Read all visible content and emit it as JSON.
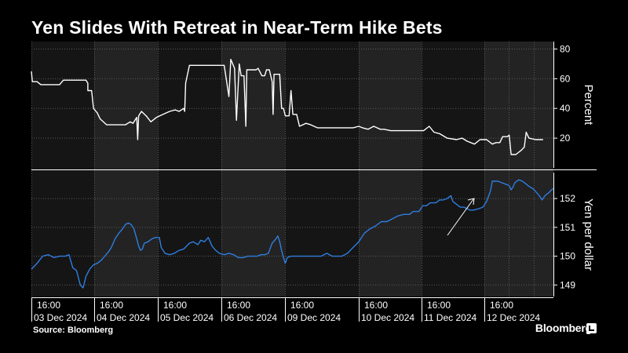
{
  "title": "Yen Slides With Retreat in Near-Term Hike Bets",
  "source": "Source: Bloomberg",
  "brand": "Bloomberg",
  "colors": {
    "background": "#000000",
    "panel_light": "#151515",
    "panel_dark": "#232323",
    "prob_line": "#ffffff",
    "yen_line": "#2f7de1",
    "grid": "#5a5a5a"
  },
  "chart_data": [
    {
      "type": "line",
      "panel": "top",
      "ylabel": "Percent",
      "ylim": [
        0,
        85
      ],
      "yticks": [
        20,
        40,
        60,
        80
      ],
      "grid": true,
      "series": [
        {
          "values": [
            [
              0,
              65
            ],
            [
              1,
              58
            ],
            [
              6,
              58
            ],
            [
              10,
              56
            ],
            [
              20,
              56
            ],
            [
              30,
              56
            ],
            [
              34,
              59
            ],
            [
              39,
              59
            ],
            [
              54,
              59
            ],
            [
              58,
              59
            ],
            [
              60,
              57
            ],
            [
              60,
              52
            ],
            [
              64,
              52
            ],
            [
              66,
              40
            ],
            [
              70,
              37
            ],
            [
              73,
              33
            ],
            [
              80,
              29
            ],
            [
              86,
              29
            ],
            [
              92,
              29
            ],
            [
              100,
              29
            ],
            [
              105,
              31
            ],
            [
              108,
              30
            ],
            [
              112,
              34
            ],
            [
              113,
              19
            ],
            [
              114,
              35
            ],
            [
              117,
              38
            ],
            [
              122,
              35
            ],
            [
              127,
              31
            ],
            [
              133,
              34
            ],
            [
              140,
              36
            ],
            [
              147,
              38
            ],
            [
              153,
              39
            ],
            [
              157,
              38
            ],
            [
              162,
              40
            ],
            [
              163,
              38
            ],
            [
              164,
              57
            ],
            [
              168,
              69
            ],
            [
              176,
              69
            ],
            [
              190,
              69
            ],
            [
              205,
              69
            ],
            [
              210,
              48
            ],
            [
              212,
              73
            ],
            [
              216,
              67
            ],
            [
              218,
              32
            ],
            [
              221,
              70
            ],
            [
              223,
              62
            ],
            [
              226,
              62
            ],
            [
              228,
              28
            ],
            [
              229,
              66
            ],
            [
              233,
              66
            ],
            [
              236,
              66
            ],
            [
              239,
              66
            ],
            [
              241,
              67
            ],
            [
              245,
              62
            ],
            [
              248,
              62
            ],
            [
              250,
              66
            ],
            [
              253,
              66
            ],
            [
              256,
              58
            ],
            [
              257,
              36
            ],
            [
              258,
              63
            ],
            [
              264,
              63
            ],
            [
              266,
              40
            ],
            [
              268,
              40
            ],
            [
              270,
              35
            ],
            [
              274,
              35
            ],
            [
              276,
              52
            ],
            [
              278,
              36
            ],
            [
              282,
              36
            ],
            [
              285,
              28
            ],
            [
              292,
              30
            ],
            [
              297,
              29
            ],
            [
              304,
              27
            ],
            [
              316,
              27
            ],
            [
              332,
              27
            ],
            [
              342,
              27
            ],
            [
              348,
              28
            ],
            [
              352,
              27
            ],
            [
              358,
              26
            ],
            [
              364,
              28
            ],
            [
              371,
              26
            ],
            [
              375,
              26
            ],
            [
              382,
              25
            ],
            [
              390,
              25
            ],
            [
              400,
              25
            ],
            [
              410,
              25
            ],
            [
              417,
              25
            ],
            [
              423,
              28
            ],
            [
              428,
              24
            ],
            [
              434,
              23
            ],
            [
              442,
              20
            ],
            [
              452,
              19
            ],
            [
              458,
              20
            ],
            [
              463,
              18
            ],
            [
              471,
              16
            ],
            [
              477,
              19
            ],
            [
              484,
              19
            ],
            [
              490,
              16
            ],
            [
              494,
              17
            ],
            [
              498,
              17
            ],
            [
              501,
              21
            ],
            [
              506,
              21
            ],
            [
              508,
              22
            ],
            [
              510,
              9
            ],
            [
              515,
              9
            ],
            [
              521,
              12
            ],
            [
              524,
              14
            ],
            [
              526,
              24
            ],
            [
              529,
              20
            ],
            [
              536,
              19
            ],
            [
              544,
              19
            ]
          ]
        }
      ]
    },
    {
      "type": "line",
      "panel": "bottom",
      "ylabel": "Yen per dollar",
      "ylim": [
        148.6,
        152.9
      ],
      "yticks": [
        149,
        150,
        151,
        152
      ],
      "grid": true,
      "series": [
        {
          "values": [
            [
              0,
              149.55
            ],
            [
              6,
              149.75
            ],
            [
              12,
              150.0
            ],
            [
              18,
              150.05
            ],
            [
              24,
              149.95
            ],
            [
              30,
              150.0
            ],
            [
              36,
              150.0
            ],
            [
              40,
              150.05
            ],
            [
              44,
              149.6
            ],
            [
              48,
              149.5
            ],
            [
              52,
              149.0
            ],
            [
              55,
              148.9
            ],
            [
              58,
              149.3
            ],
            [
              62,
              149.55
            ],
            [
              66,
              149.7
            ],
            [
              70,
              149.75
            ],
            [
              74,
              149.85
            ],
            [
              78,
              150.0
            ],
            [
              82,
              150.15
            ],
            [
              85,
              150.3
            ],
            [
              89,
              150.6
            ],
            [
              93,
              150.8
            ],
            [
              97,
              150.95
            ],
            [
              100,
              151.1
            ],
            [
              103,
              151.15
            ],
            [
              106,
              151.1
            ],
            [
              109,
              150.95
            ],
            [
              112,
              150.6
            ],
            [
              114,
              150.35
            ],
            [
              116,
              150.2
            ],
            [
              118,
              150.25
            ],
            [
              120,
              150.45
            ],
            [
              124,
              150.5
            ],
            [
              128,
              150.6
            ],
            [
              132,
              150.65
            ],
            [
              136,
              150.65
            ],
            [
              138,
              150.3
            ],
            [
              142,
              150.1
            ],
            [
              147,
              150.05
            ],
            [
              152,
              150.1
            ],
            [
              157,
              150.2
            ],
            [
              162,
              150.25
            ],
            [
              168,
              150.45
            ],
            [
              172,
              150.5
            ],
            [
              177,
              150.4
            ],
            [
              180,
              150.55
            ],
            [
              184,
              150.5
            ],
            [
              188,
              150.65
            ],
            [
              192,
              150.35
            ],
            [
              196,
              150.2
            ],
            [
              200,
              150.1
            ],
            [
              205,
              150.05
            ],
            [
              210,
              150.1
            ],
            [
              215,
              150.05
            ],
            [
              220,
              149.95
            ],
            [
              225,
              149.95
            ],
            [
              230,
              150.0
            ],
            [
              235,
              150.0
            ],
            [
              240,
              150.0
            ],
            [
              244,
              150.05
            ],
            [
              248,
              150.05
            ],
            [
              252,
              150.1
            ],
            [
              256,
              150.45
            ],
            [
              260,
              150.6
            ],
            [
              262,
              150.7
            ],
            [
              264,
              150.5
            ],
            [
              266,
              150.2
            ],
            [
              268,
              149.95
            ],
            [
              270,
              149.75
            ],
            [
              272,
              149.95
            ],
            [
              276,
              150.0
            ],
            [
              284,
              150.0
            ],
            [
              292,
              150.0
            ],
            [
              298,
              150.0
            ],
            [
              304,
              150.0
            ],
            [
              308,
              150.0
            ],
            [
              314,
              150.1
            ],
            [
              320,
              150.0
            ],
            [
              326,
              150.0
            ],
            [
              330,
              150.0
            ],
            [
              336,
              150.1
            ],
            [
              342,
              150.3
            ],
            [
              348,
              150.5
            ],
            [
              354,
              150.8
            ],
            [
              360,
              150.95
            ],
            [
              366,
              151.05
            ],
            [
              372,
              151.2
            ],
            [
              378,
              151.2
            ],
            [
              384,
              151.3
            ],
            [
              390,
              151.4
            ],
            [
              396,
              151.45
            ],
            [
              402,
              151.45
            ],
            [
              406,
              151.55
            ],
            [
              412,
              151.55
            ],
            [
              416,
              151.75
            ],
            [
              420,
              151.75
            ],
            [
              424,
              151.85
            ],
            [
              430,
              151.85
            ],
            [
              434,
              151.95
            ],
            [
              438,
              151.95
            ],
            [
              442,
              152.0
            ],
            [
              446,
              152.1
            ],
            [
              448,
              151.9
            ],
            [
              452,
              151.8
            ],
            [
              456,
              151.7
            ],
            [
              460,
              151.7
            ],
            [
              466,
              151.6
            ],
            [
              470,
              151.6
            ],
            [
              476,
              151.65
            ],
            [
              480,
              151.7
            ],
            [
              484,
              151.9
            ],
            [
              488,
              152.25
            ],
            [
              490,
              152.6
            ],
            [
              496,
              152.6
            ],
            [
              500,
              152.55
            ],
            [
              504,
              152.5
            ],
            [
              508,
              152.45
            ],
            [
              510,
              152.3
            ],
            [
              512,
              152.4
            ],
            [
              514,
              152.55
            ],
            [
              518,
              152.65
            ],
            [
              522,
              152.6
            ],
            [
              526,
              152.5
            ],
            [
              530,
              152.4
            ],
            [
              533,
              152.35
            ],
            [
              536,
              152.25
            ],
            [
              540,
              152.1
            ],
            [
              543,
              151.95
            ],
            [
              546,
              152.1
            ],
            [
              550,
              152.2
            ],
            [
              553,
              152.3
            ],
            [
              555,
              152.35
            ]
          ]
        }
      ]
    }
  ],
  "x_axis": {
    "ticks": [
      {
        "time": "16:00",
        "date": "03 Dec 2024"
      },
      {
        "time": "16:00",
        "date": "04 Dec 2024"
      },
      {
        "time": "16:00",
        "date": "05 Dec 2024"
      },
      {
        "time": "16:00",
        "date": "06 Dec 2024"
      },
      {
        "time": "16:00",
        "date": "09 Dec 2024"
      },
      {
        "time": "16:00",
        "date": "10 Dec 2024"
      },
      {
        "time": "16:00",
        "date": "11 Dec 2024"
      },
      {
        "time": "16:00",
        "date": "12 Dec 2024"
      }
    ]
  },
  "day_bands": 9
}
